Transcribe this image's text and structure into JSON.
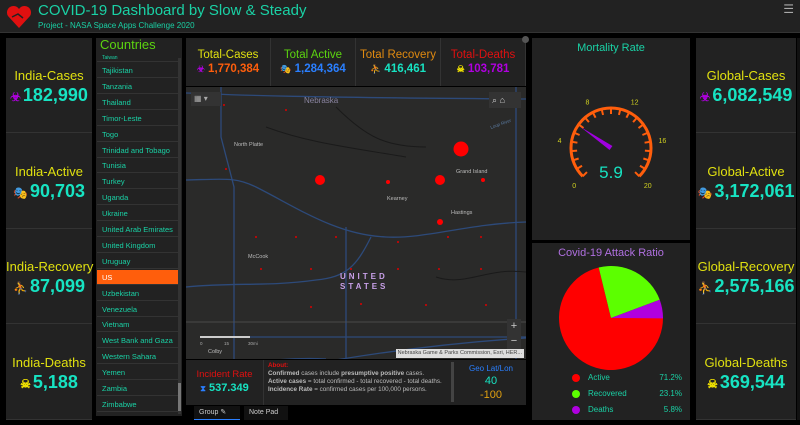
{
  "header": {
    "title": "COVID-19 Dashboard by Slow & Steady",
    "subtitle": "Project - NASA Space Apps Challenge 2020",
    "menu_icon": "hamburger-icon"
  },
  "india": [
    {
      "label": "India-Cases",
      "value": "182,990",
      "icon": "biohazard-icon",
      "icon_color": "#b000e0"
    },
    {
      "label": "India-Active",
      "value": "90,703",
      "icon": "masks-icon",
      "icon_color": "#ff3b3b"
    },
    {
      "label": "India-Recovery",
      "value": "87,099",
      "icon": "people-icon",
      "icon_color": "#5cd410"
    },
    {
      "label": "India-Deaths",
      "value": "5,188",
      "icon": "skull-icon",
      "icon_color": "#f5e600"
    }
  ],
  "countries": {
    "title": "Countries",
    "partial": "Taiwan",
    "items": [
      "Tajikistan",
      "Tanzania",
      "Thailand",
      "Timor-Leste",
      "Togo",
      "Trinidad and Tobago",
      "Tunisia",
      "Turkey",
      "Uganda",
      "Ukraine",
      "United Arab Emirates",
      "United Kingdom",
      "Uruguay",
      "US",
      "Uzbekistan",
      "Venezuela",
      "Vietnam",
      "West Bank and Gaza",
      "Western Sahara",
      "Yemen",
      "Zambia",
      "Zimbabwe"
    ],
    "selected": "US"
  },
  "totals": [
    {
      "label": "Total-Cases",
      "value": "1,770,384",
      "label_color": "#e0e010",
      "value_color": "#ff5e0c",
      "icon": "biohazard-icon",
      "icon_color": "#b000e0"
    },
    {
      "label": "Total Active",
      "value": "1,284,364",
      "label_color": "#5cd410",
      "value_color": "#2a7fff",
      "icon": "masks-icon",
      "icon_color": "#ff3b3b"
    },
    {
      "label": "Total Recovery",
      "value": "416,461",
      "label_color": "#e08a10",
      "value_color": "#17e3c2",
      "icon": "people-icon",
      "icon_color": "#5cd410"
    },
    {
      "label": "Total-Deaths",
      "value": "103,781",
      "label_color": "#e01010",
      "value_color": "#b000e0",
      "icon": "skull-icon",
      "icon_color": "#f5e600"
    }
  ],
  "map": {
    "state": "Nebraska",
    "country_line1": "UNITED",
    "country_line2": "STATES",
    "cities": [
      "North Platte",
      "Grand Island",
      "Kearney",
      "Hastings",
      "McCook",
      "Colby"
    ],
    "river": "Loup River",
    "attribution": "Nebraska Game & Parks Commission, Esri, HER...",
    "scale": [
      "0",
      "15",
      "30mi"
    ],
    "zoom_in": "+",
    "zoom_out": "−"
  },
  "incident": {
    "label": "Incident Rate",
    "value": "537.349"
  },
  "about": {
    "title": "About:",
    "line1_b": "Confirmed",
    "line1": " cases include ",
    "line1_b2": "presumptive positive",
    "line1_end": " cases.",
    "line2_b": "Active cases",
    "line2": " = total confirmed - total recovered - total deaths.",
    "line3_b": "Incidence Rate",
    "line3": " = confirmed cases per 100,000 persons."
  },
  "geo": {
    "label": "Geo Lat/Lon",
    "lat": "40",
    "lon": "-100"
  },
  "tabs": {
    "group": "Group",
    "notepad": "Note Pad"
  },
  "mortality": {
    "title": "Mortality Rate",
    "value": 5.9,
    "value_text": "5.9",
    "min": 0,
    "max": 20,
    "ticks": [
      "0",
      "4",
      "8",
      "12",
      "16",
      "20"
    ]
  },
  "attack": {
    "title": "Covid-19 Attack Ratio",
    "slices": [
      {
        "name": "Active",
        "pct": 71.2,
        "label": "71.2%",
        "color": "#ff0000"
      },
      {
        "name": "Recovered",
        "pct": 23.1,
        "label": "23.1%",
        "color": "#5cff00"
      },
      {
        "name": "Deaths",
        "pct": 5.8,
        "label": "5.8%",
        "color": "#b000e0"
      }
    ]
  },
  "global": [
    {
      "label": "Global-Cases",
      "value": "6,082,549",
      "icon": "biohazard-icon",
      "icon_color": "#b000e0"
    },
    {
      "label": "Global-Active",
      "value": "3,172,061",
      "icon": "masks-icon",
      "icon_color": "#ff3b3b"
    },
    {
      "label": "Global-Recovery",
      "value": "2,575,166",
      "icon": "people-icon",
      "icon_color": "#5cd410"
    },
    {
      "label": "Global-Deaths",
      "value": "369,544",
      "icon": "skull-icon",
      "icon_color": "#f5e600"
    }
  ]
}
